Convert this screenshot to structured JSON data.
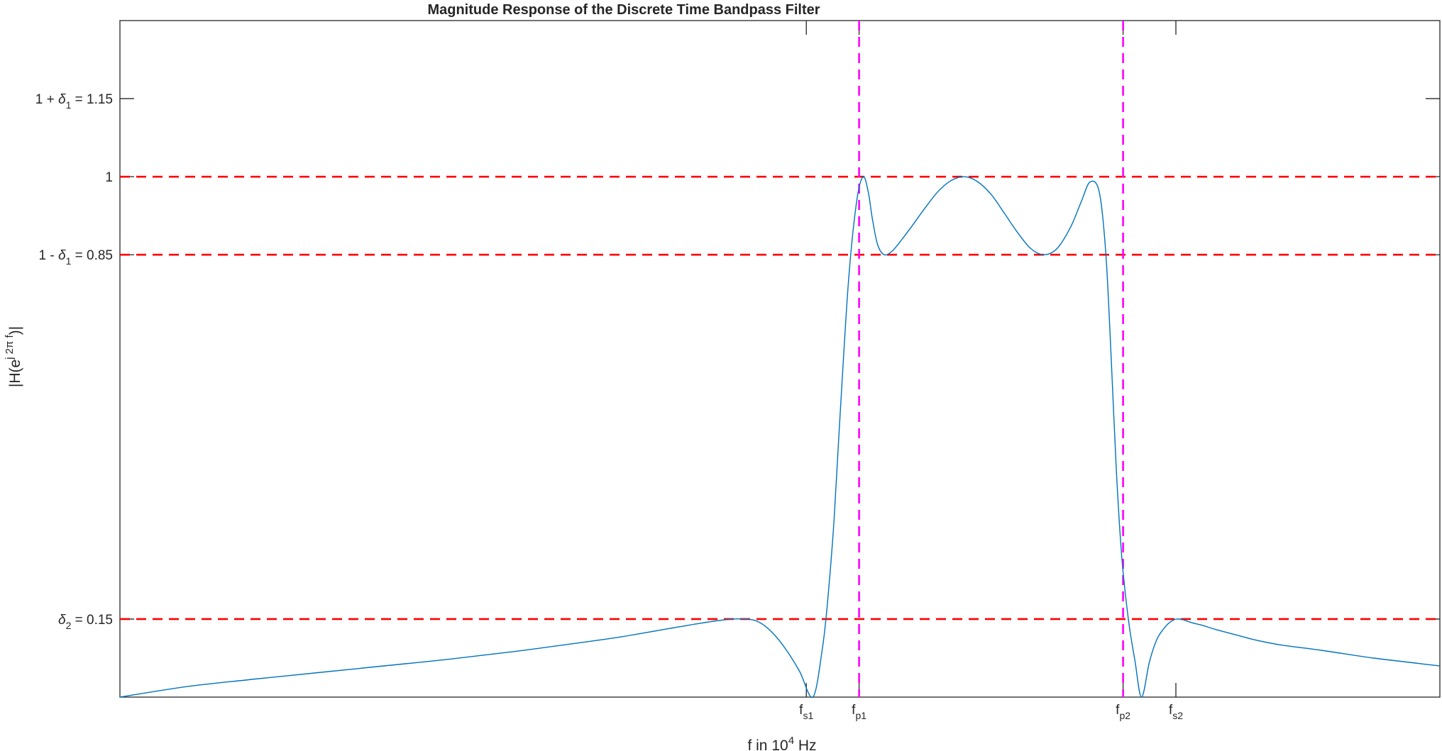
{
  "chart_data": {
    "type": "line",
    "title": "Magnitude Response of the Discrete Time Bandpass Filter",
    "xlabel": {
      "main": "f in 10",
      "sup": "4",
      "tail": " Hz"
    },
    "ylabel": {
      "pre": "|H(e",
      "sup": "j 2π f",
      "post": ")|"
    },
    "xlim": [
      0,
      100
    ],
    "ylim": [
      0,
      1.3
    ],
    "grid": false,
    "x_ticks": [
      {
        "x": 52.0,
        "main": "f",
        "sub": "s1"
      },
      {
        "x": 56.0,
        "main": "f",
        "sub": "p1"
      },
      {
        "x": 76.0,
        "main": "f",
        "sub": "p2"
      },
      {
        "x": 80.0,
        "main": "f",
        "sub": "s2"
      }
    ],
    "y_ticks": [
      {
        "y": 0.15,
        "parts": [
          "",
          "δ",
          "2",
          " = 0.15"
        ]
      },
      {
        "y": 0.85,
        "parts": [
          "1 - ",
          "δ",
          "1",
          " = 0.85"
        ]
      },
      {
        "y": 1.0,
        "parts": [
          "1",
          "",
          "",
          ""
        ]
      },
      {
        "y": 1.15,
        "parts": [
          "1 + ",
          "δ",
          "1",
          " = 1.15"
        ]
      }
    ],
    "hlines": [
      {
        "y": 1.0,
        "color": "#ff0000",
        "style": "dashed"
      },
      {
        "y": 0.85,
        "color": "#ff0000",
        "style": "dashed"
      },
      {
        "y": 0.15,
        "color": "#ff0000",
        "style": "dashed"
      }
    ],
    "vlines": [
      {
        "x": 56.0,
        "color": "#ff00ff",
        "style": "dashed"
      },
      {
        "x": 76.0,
        "color": "#ff00ff",
        "style": "dashed"
      }
    ],
    "series": [
      {
        "color": "#0072bd",
        "x": [
          0,
          5,
          10,
          15,
          20,
          25,
          30,
          35,
          38,
          41,
          44,
          46,
          47.5,
          48.5,
          49.5,
          50.5,
          51.5,
          52.5,
          53.2,
          53.6,
          54.1,
          54.6,
          55.2,
          55.8,
          56.3,
          56.7,
          57.0,
          57.4,
          57.9,
          58.5,
          59.2,
          60.0,
          61.0,
          62.0,
          63.0,
          64.0,
          65.0,
          66.0,
          67.0,
          68.0,
          69.0,
          70.0,
          71.0,
          72.0,
          72.8,
          73.5,
          74.2,
          74.7,
          75.1,
          75.5,
          75.9,
          76.4,
          76.9,
          77.4,
          78.0,
          78.6,
          79.3,
          79.8,
          80.1,
          80.5,
          81.2,
          82.0,
          83.0,
          84.5,
          86.0,
          88.0,
          91.0,
          95.0,
          100.0
        ],
        "y": [
          0.0,
          0.02,
          0.034,
          0.047,
          0.06,
          0.073,
          0.088,
          0.105,
          0.116,
          0.129,
          0.142,
          0.149,
          0.15,
          0.143,
          0.122,
          0.09,
          0.049,
          0.0,
          0.09,
          0.18,
          0.34,
          0.56,
          0.8,
          0.95,
          1.0,
          0.97,
          0.92,
          0.87,
          0.85,
          0.857,
          0.878,
          0.905,
          0.94,
          0.972,
          0.993,
          1.0,
          0.99,
          0.966,
          0.93,
          0.893,
          0.862,
          0.85,
          0.862,
          0.902,
          0.95,
          0.99,
          0.97,
          0.85,
          0.65,
          0.43,
          0.27,
          0.15,
          0.07,
          0.0,
          0.068,
          0.113,
          0.138,
          0.148,
          0.15,
          0.149,
          0.143,
          0.138,
          0.13,
          0.12,
          0.11,
          0.1,
          0.09,
          0.075,
          0.06
        ]
      }
    ]
  }
}
